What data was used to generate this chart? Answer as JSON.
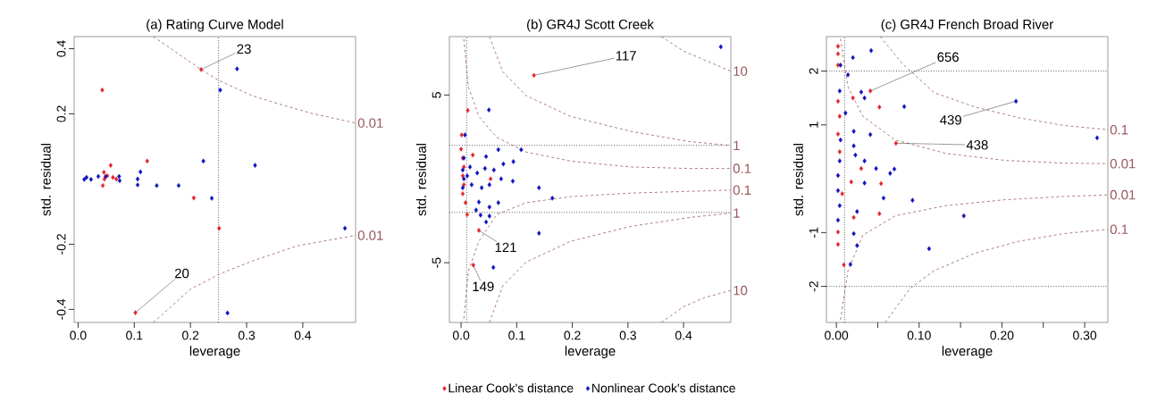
{
  "chart_data": [
    {
      "type": "scatter",
      "title": "(a) Rating Curve Model",
      "xlabel": "leverage",
      "ylabel": "std. residual",
      "xlim": [
        -0.007,
        0.494
      ],
      "ylim": [
        -0.44,
        0.437
      ],
      "xticks": [
        {
          "value": 0,
          "label": "0.0"
        },
        0.1,
        0.2,
        0.3,
        0.4
      ],
      "yticks": [
        -0.4,
        -0.2,
        0.2,
        0.4
      ],
      "ref_lines": [
        {
          "axis": "x",
          "value": 0.25,
          "line_style": "dotted"
        }
      ],
      "annotations": [
        {
          "text": "23",
          "x": 0.219,
          "y": 0.336
        },
        {
          "text": "20",
          "x": 0.102,
          "y": -0.41
        }
      ],
      "series": [
        {
          "marker": "diamond",
          "color": "#e0262a",
          "x": [
            0.219,
            0.043,
            0.123,
            0.058,
            0.046,
            0.052,
            0.062,
            0.047,
            0.068,
            0.044,
            0.206,
            0.251,
            0.102
          ],
          "values": [
            0.336,
            0.273,
            0.055,
            0.042,
            0.021,
            0.01,
            0.005,
            0.0,
            0.0,
            -0.02,
            -0.058,
            -0.151,
            -0.41
          ]
        },
        {
          "marker": "diamond",
          "color": "#1010c0",
          "x": [
            0.283,
            0.253,
            0.223,
            0.315,
            0.111,
            0.106,
            0.106,
            0.14,
            0.179,
            0.238,
            0.475,
            0.266,
            0.011,
            0.015,
            0.023,
            0.036,
            0.049,
            0.073,
            0.074
          ],
          "values": [
            0.338,
            0.273,
            0.055,
            0.042,
            0.022,
            0.0,
            -0.018,
            -0.02,
            -0.02,
            -0.059,
            -0.151,
            -0.411,
            -0.001,
            0.005,
            -0.001,
            0.008,
            0.008,
            0.008,
            -0.005
          ]
        },
        {
          "type": "line",
          "name": "0.01",
          "color": "#9a5a5e",
          "line_style": "dashed",
          "x": [
            0.134,
            0.219,
            0.251,
            0.311,
            0.364,
            0.417,
            0.494
          ],
          "values": [
            0.437,
            0.336,
            0.302,
            0.255,
            0.227,
            0.201,
            0.172
          ]
        },
        {
          "type": "line",
          "name": "0.01",
          "color": "#9a5a5e",
          "line_style": "dashed",
          "x": [
            0.134,
            0.2,
            0.251,
            0.311,
            0.39,
            0.494
          ],
          "values": [
            -0.44,
            -0.338,
            -0.292,
            -0.251,
            -0.205,
            -0.173
          ]
        }
      ]
    },
    {
      "type": "scatter",
      "title": "(b) GR4J Scott Creek",
      "xlabel": "leverage",
      "ylabel": "std. residual",
      "legend": "bottom",
      "xlim": [
        -0.021,
        0.485
      ],
      "ylim": [
        -8.56,
        8.48
      ],
      "xticks": [
        {
          "value": 0,
          "label": "0.0"
        },
        0.1,
        0.2,
        0.3,
        0.4
      ],
      "yticks": [
        -5,
        5
      ],
      "ref_lines": [
        {
          "axis": "x",
          "value": 0.01,
          "line_style": "dotted"
        },
        {
          "axis": "y",
          "value": 2,
          "line_style": "dotted"
        },
        {
          "axis": "y",
          "value": -2,
          "line_style": "dotted"
        }
      ],
      "annotations": [
        {
          "text": "117",
          "x": 0.131,
          "y": 6.17
        },
        {
          "text": "121",
          "x": 0.032,
          "y": -3.07
        },
        {
          "text": "149",
          "x": 0.022,
          "y": -5.14
        }
      ],
      "series": [
        {
          "marker": "diamond",
          "name": "Linear Cook's distance",
          "color": "#e0262a",
          "x": [
            0.131,
            0.012,
            0.001,
            0.0,
            0.003,
            0.005,
            0.003,
            0.005,
            0.003,
            0.008,
            0.011,
            0.032,
            0.022,
            0.053,
            0.021
          ],
          "values": [
            6.17,
            4.08,
            2.62,
            1.77,
            1.24,
            0.71,
            0.18,
            -0.35,
            -0.89,
            -1.42,
            -2.13,
            -3.07,
            -5.14,
            0.0,
            1.42
          ]
        },
        {
          "marker": "diamond",
          "name": "Nonlinear Cook's distance",
          "color": "#1010c0",
          "x": [
            0.467,
            0.05,
            0.007,
            0.108,
            0.067,
            0.045,
            0.076,
            0.094,
            0.043,
            0.059,
            0.072,
            0.093,
            0.14,
            0.164,
            0.037,
            0.051,
            0.067,
            0.032,
            0.051,
            0.027,
            0.035,
            0.051,
            0.045,
            0.14,
            0.058,
            0.005,
            0.003,
            0.005,
            0.003,
            0.011,
            0.016,
            0.019,
            0.029
          ],
          "values": [
            7.87,
            4.11,
            2.62,
            1.74,
            1.74,
            1.33,
            0.89,
            1.03,
            0.62,
            0.53,
            0.0,
            -0.14,
            -0.53,
            -1.15,
            -0.53,
            -0.35,
            -1.42,
            -1.38,
            -1.68,
            -1.86,
            -2.16,
            -2.22,
            -2.57,
            -3.24,
            -5.28,
            1.24,
            0.53,
            0.0,
            -0.53,
            0.18,
            0.71,
            -0.35,
            0.35
          ]
        },
        {
          "type": "line",
          "name": "10",
          "color": "#9a5a5e",
          "line_style": "dashed",
          "x": [
            0.36,
            0.4,
            0.437,
            0.485
          ],
          "values": [
            8.48,
            7.62,
            7.09,
            6.42
          ]
        },
        {
          "type": "line",
          "name": "1",
          "color": "#9a5a5e",
          "line_style": "dashed",
          "x": [
            0.051,
            0.075,
            0.117,
            0.197,
            0.304,
            0.411,
            0.485
          ],
          "values": [
            8.48,
            6.38,
            4.96,
            3.72,
            2.84,
            2.22,
            1.99
          ]
        },
        {
          "type": "line",
          "name": "0.1",
          "color": "#9a5a5e",
          "line_style": "dashed",
          "x": [
            0.005,
            0.013,
            0.032,
            0.064,
            0.117,
            0.197,
            0.304,
            0.411,
            0.485
          ],
          "values": [
            8.33,
            5.5,
            3.72,
            2.48,
            1.6,
            1.06,
            0.71,
            0.62,
            0.62
          ]
        },
        {
          "type": "line",
          "name": "0.1",
          "color": "#9a5a5e",
          "line_style": "dashed",
          "x": [
            0.005,
            0.013,
            0.032,
            0.064,
            0.117,
            0.197,
            0.304,
            0.485
          ],
          "values": [
            -8.33,
            -5.5,
            -3.72,
            -2.13,
            -1.42,
            -1.06,
            -0.85,
            -0.67
          ]
        },
        {
          "type": "line",
          "name": "1",
          "color": "#9a5a5e",
          "line_style": "dashed",
          "x": [
            0.051,
            0.075,
            0.117,
            0.197,
            0.304,
            0.411,
            0.485
          ],
          "values": [
            -8.56,
            -6.38,
            -4.96,
            -3.72,
            -2.84,
            -2.3,
            -2.04
          ]
        },
        {
          "type": "line",
          "name": "10",
          "color": "#9a5a5e",
          "line_style": "dashed",
          "x": [
            0.36,
            0.4,
            0.437,
            0.485
          ],
          "values": [
            -8.56,
            -7.62,
            -7.09,
            -6.65
          ]
        }
      ]
    },
    {
      "type": "scatter",
      "title": "(c) GR4J French Broad River",
      "xlabel": "leverage",
      "ylabel": "std. residual",
      "xlim": [
        -0.012,
        0.328
      ],
      "ylim": [
        -2.67,
        2.64
      ],
      "xticks": [
        {
          "value": 0,
          "label": "0.00"
        },
        {
          "value": 0.05,
          "label": null
        },
        {
          "value": 0.1,
          "label": "0.10"
        },
        {
          "value": 0.15,
          "label": null
        },
        {
          "value": 0.2,
          "label": "0.20"
        },
        {
          "value": 0.25,
          "label": null
        },
        {
          "value": 0.3,
          "label": "0.30"
        }
      ],
      "yticks": [
        -2,
        -1,
        1,
        2
      ],
      "ref_lines": [
        {
          "axis": "x",
          "value": 0.01,
          "line_style": "dotted"
        },
        {
          "axis": "y",
          "value": 2,
          "line_style": "dotted"
        },
        {
          "axis": "y",
          "value": -2,
          "line_style": "dotted"
        }
      ],
      "annotations": [
        {
          "text": "656",
          "x": 0.041,
          "y": 1.63
        },
        {
          "text": "439",
          "x": 0.217,
          "y": 1.44
        },
        {
          "text": "438",
          "x": 0.072,
          "y": 0.66
        }
      ],
      "series": [
        {
          "marker": "diamond",
          "color": "#e0262a",
          "x": [
            0.002,
            0.002,
            0.002,
            0.02,
            0.002,
            0.041,
            0.052,
            0.072,
            0.004,
            0.002,
            0.004,
            0.03,
            0.054,
            0.052,
            0.007,
            0.021,
            0.002,
            0.002,
            0.009,
            0.018
          ],
          "values": [
            2.46,
            2.32,
            2.11,
            1.5,
            1.44,
            1.63,
            1.33,
            0.66,
            1.16,
            0.83,
            0.5,
            0.19,
            -0.09,
            -0.65,
            -0.28,
            -0.72,
            -0.99,
            -1.22,
            -1.6,
            -0.06
          ]
        },
        {
          "marker": "diamond",
          "color": "#1010c0",
          "x": [
            0.042,
            0.02,
            0.005,
            0.014,
            0.004,
            0.03,
            0.034,
            0.082,
            0.217,
            0.315,
            0.041,
            0.021,
            0.023,
            0.034,
            0.048,
            0.07,
            0.065,
            0.034,
            0.057,
            0.092,
            0.025,
            0.154,
            0.021,
            0.025,
            0.112,
            0.017,
            0.002,
            0.004,
            0.002,
            0.004,
            0.002,
            0.005,
            0.011,
            0.021
          ],
          "values": [
            2.38,
            2.25,
            2.11,
            1.93,
            1.63,
            1.61,
            1.5,
            1.34,
            1.44,
            0.76,
            0.82,
            0.61,
            0.44,
            0.33,
            0.19,
            0.18,
            0.1,
            -0.08,
            -0.36,
            -0.4,
            -0.61,
            -0.69,
            -1.02,
            -1.24,
            -1.3,
            -1.59,
            0.06,
            0.33,
            -0.22,
            -0.5,
            -0.77,
            0.72,
            1.22,
            0.88
          ]
        },
        {
          "type": "line",
          "name": "0.1",
          "color": "#9a5a5e",
          "line_style": "dashed",
          "x": [
            0.053,
            0.079,
            0.118,
            0.168,
            0.221,
            0.275,
            0.328
          ],
          "values": [
            2.64,
            2.15,
            1.6,
            1.33,
            1.13,
            0.99,
            0.91
          ]
        },
        {
          "type": "line",
          "name": "0.01",
          "color": "#9a5a5e",
          "line_style": "dashed",
          "x": [
            0.005,
            0.014,
            0.032,
            0.071,
            0.132,
            0.204,
            0.275,
            0.328
          ],
          "values": [
            2.6,
            1.71,
            1.16,
            0.72,
            0.47,
            0.34,
            0.29,
            0.28
          ]
        },
        {
          "type": "line",
          "name": "0.01",
          "color": "#9a5a5e",
          "line_style": "dashed",
          "x": [
            0.005,
            0.014,
            0.032,
            0.071,
            0.132,
            0.204,
            0.275,
            0.328
          ],
          "values": [
            -2.62,
            -1.71,
            -1.05,
            -0.69,
            -0.5,
            -0.39,
            -0.33,
            -0.3
          ]
        },
        {
          "type": "line",
          "name": "0.1",
          "color": "#9a5a5e",
          "line_style": "dashed",
          "x": [
            0.059,
            0.089,
            0.118,
            0.168,
            0.221,
            0.275,
            0.328
          ],
          "values": [
            -2.67,
            -2.04,
            -1.71,
            -1.38,
            -1.16,
            -1.02,
            -0.94
          ]
        }
      ]
    }
  ]
}
